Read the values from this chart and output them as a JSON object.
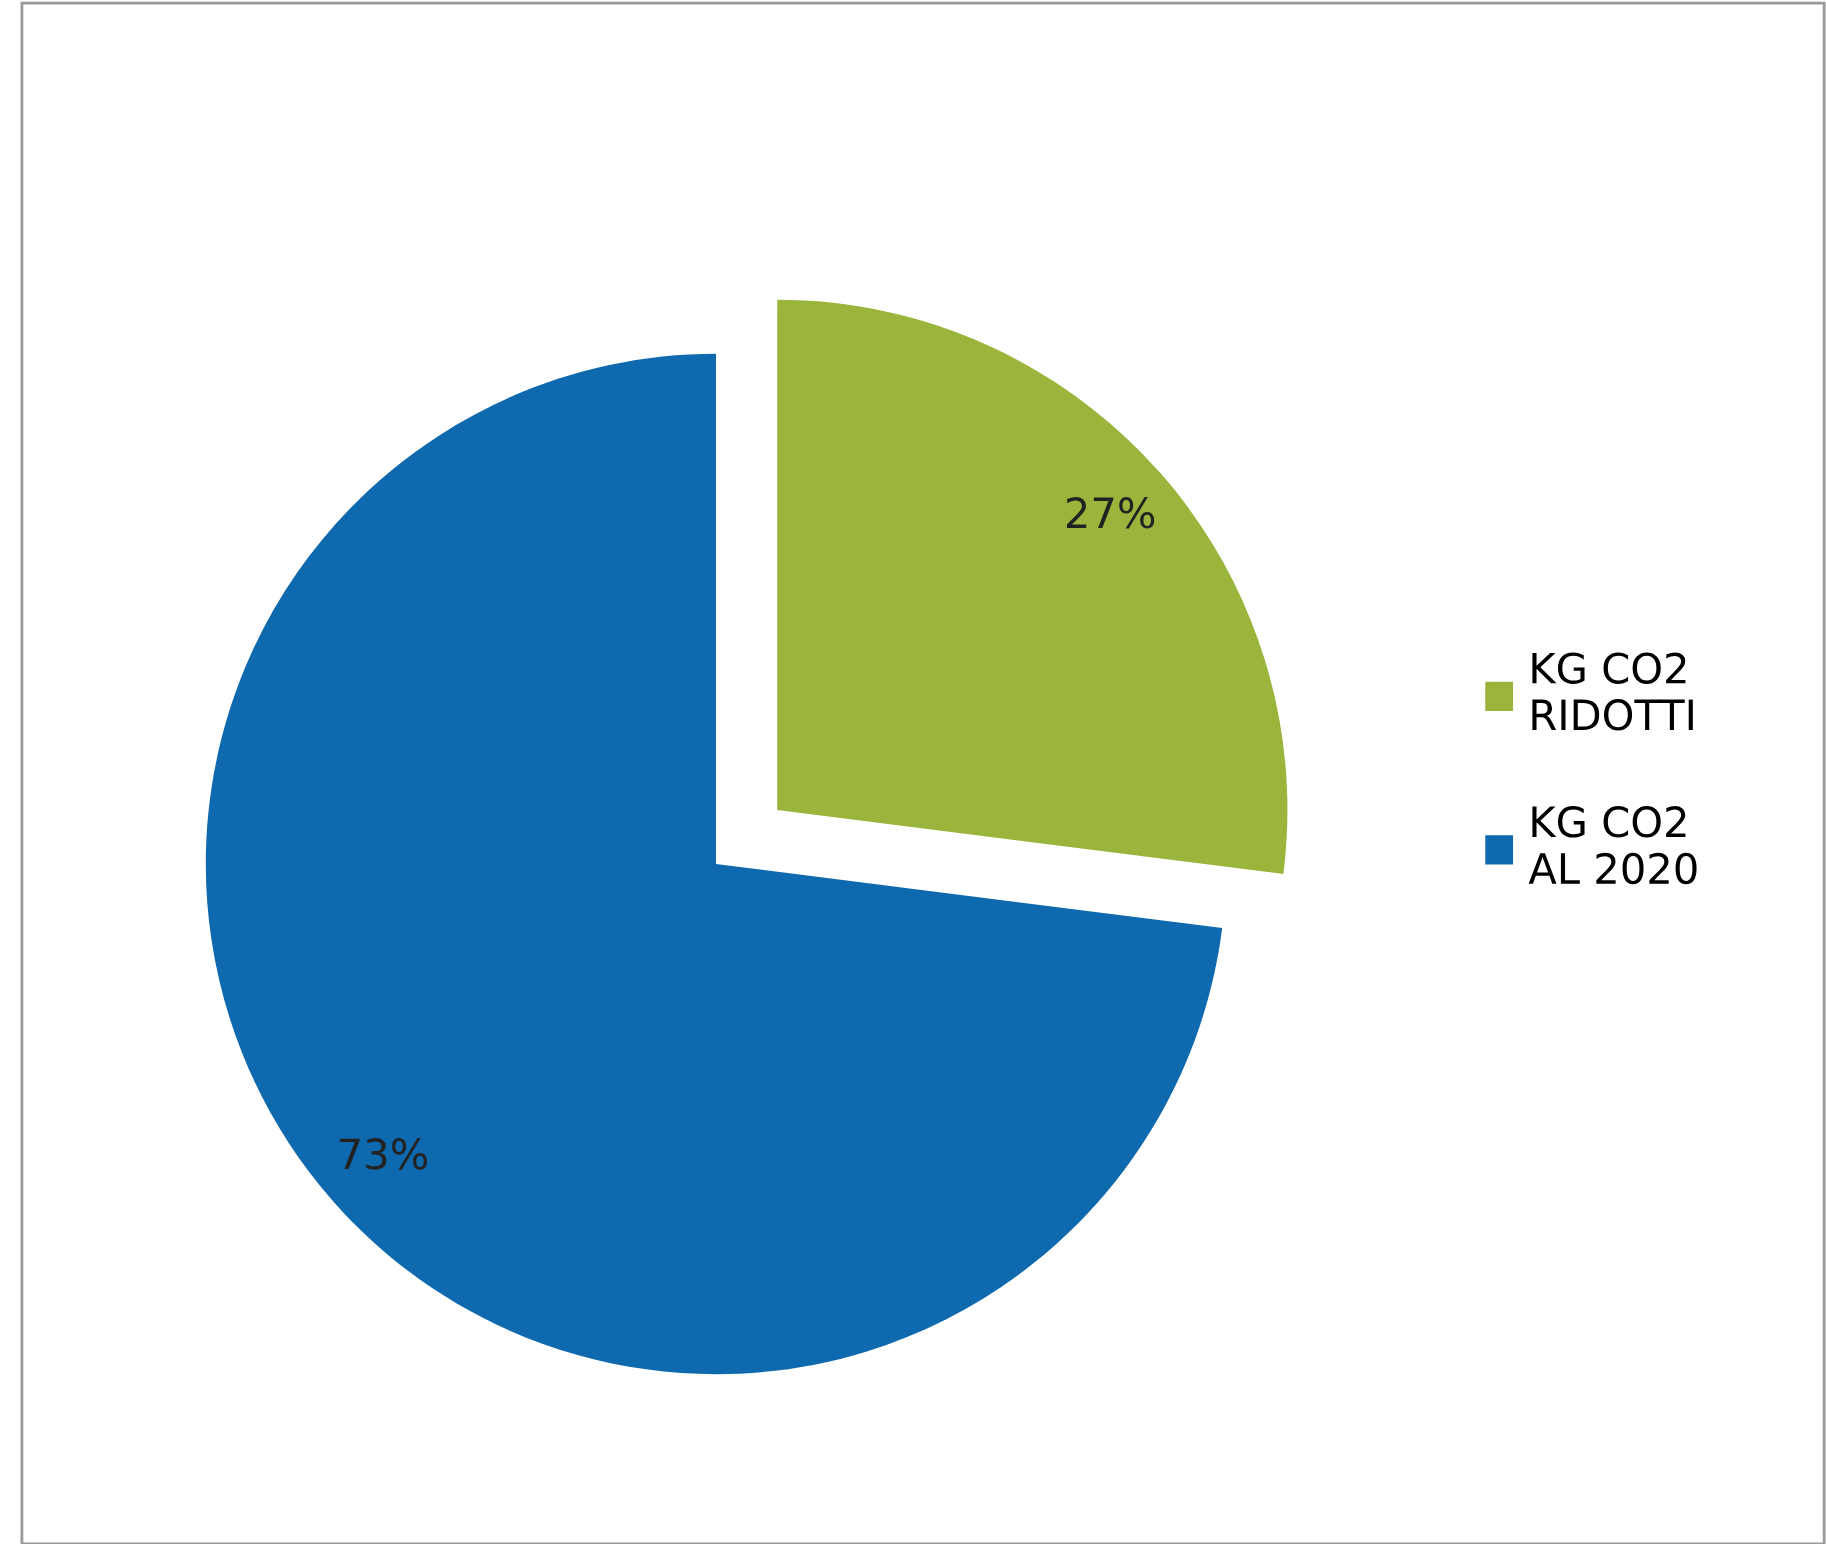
{
  "chart_data": {
    "type": "pie",
    "categories": [
      "KG CO2\nRIDOTTI",
      "KG CO2\nAL 2020"
    ],
    "values": [
      27,
      73
    ],
    "colors": [
      "#9bb53c",
      "#0e69ae"
    ],
    "value_labels": [
      "27%",
      "73%"
    ],
    "legend": "right"
  }
}
